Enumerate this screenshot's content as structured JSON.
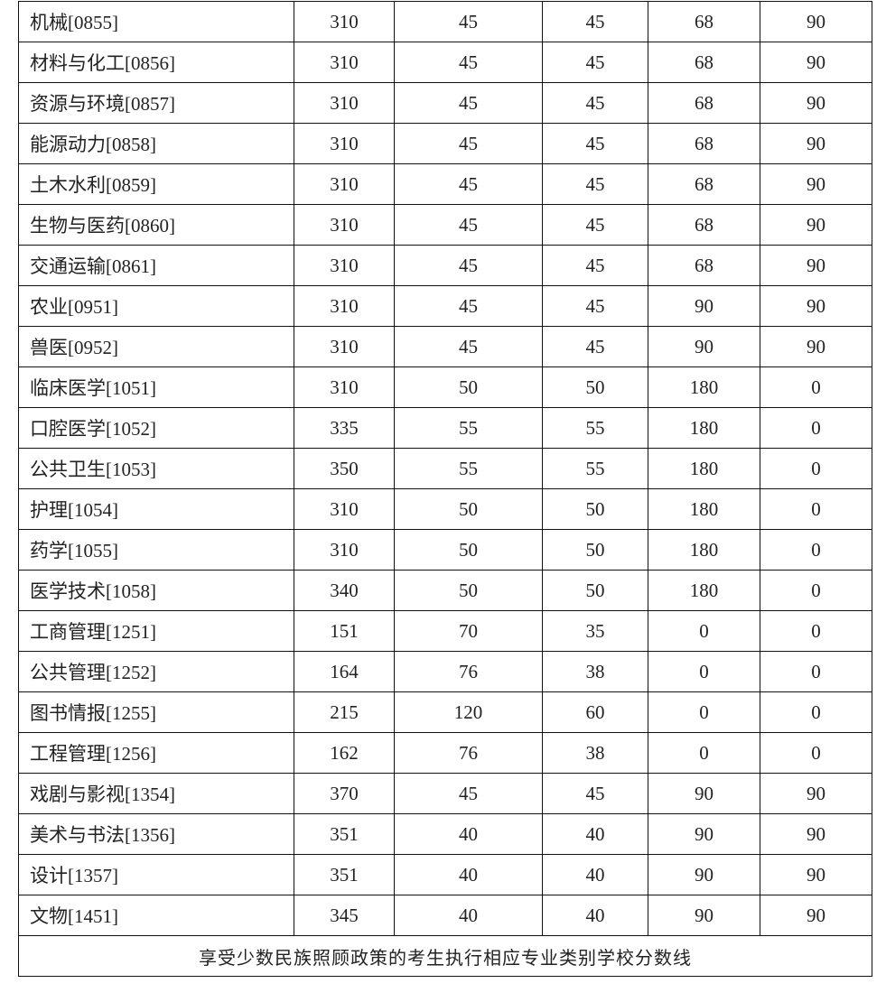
{
  "rows": [
    [
      "机械[0855]",
      "310",
      "45",
      "45",
      "68",
      "90"
    ],
    [
      "材料与化工[0856]",
      "310",
      "45",
      "45",
      "68",
      "90"
    ],
    [
      "资源与环境[0857]",
      "310",
      "45",
      "45",
      "68",
      "90"
    ],
    [
      "能源动力[0858]",
      "310",
      "45",
      "45",
      "68",
      "90"
    ],
    [
      "土木水利[0859]",
      "310",
      "45",
      "45",
      "68",
      "90"
    ],
    [
      "生物与医药[0860]",
      "310",
      "45",
      "45",
      "68",
      "90"
    ],
    [
      "交通运输[0861]",
      "310",
      "45",
      "45",
      "68",
      "90"
    ],
    [
      "农业[0951]",
      "310",
      "45",
      "45",
      "90",
      "90"
    ],
    [
      "兽医[0952]",
      "310",
      "45",
      "45",
      "90",
      "90"
    ],
    [
      "临床医学[1051]",
      "310",
      "50",
      "50",
      "180",
      "0"
    ],
    [
      "口腔医学[1052]",
      "335",
      "55",
      "55",
      "180",
      "0"
    ],
    [
      "公共卫生[1053]",
      "350",
      "55",
      "55",
      "180",
      "0"
    ],
    [
      "护理[1054]",
      "310",
      "50",
      "50",
      "180",
      "0"
    ],
    [
      "药学[1055]",
      "310",
      "50",
      "50",
      "180",
      "0"
    ],
    [
      "医学技术[1058]",
      "340",
      "50",
      "50",
      "180",
      "0"
    ],
    [
      "工商管理[1251]",
      "151",
      "70",
      "35",
      "0",
      "0"
    ],
    [
      "公共管理[1252]",
      "164",
      "76",
      "38",
      "0",
      "0"
    ],
    [
      "图书情报[1255]",
      "215",
      "120",
      "60",
      "0",
      "0"
    ],
    [
      "工程管理[1256]",
      "162",
      "76",
      "38",
      "0",
      "0"
    ],
    [
      "戏剧与影视[1354]",
      "370",
      "45",
      "45",
      "90",
      "90"
    ],
    [
      "美术与书法[1356]",
      "351",
      "40",
      "40",
      "90",
      "90"
    ],
    [
      "设计[1357]",
      "351",
      "40",
      "40",
      "90",
      "90"
    ],
    [
      "文物[1451]",
      "345",
      "40",
      "40",
      "90",
      "90"
    ]
  ],
  "footer": "享受少数民族照顾政策的考生执行相应专业类别学校分数线"
}
